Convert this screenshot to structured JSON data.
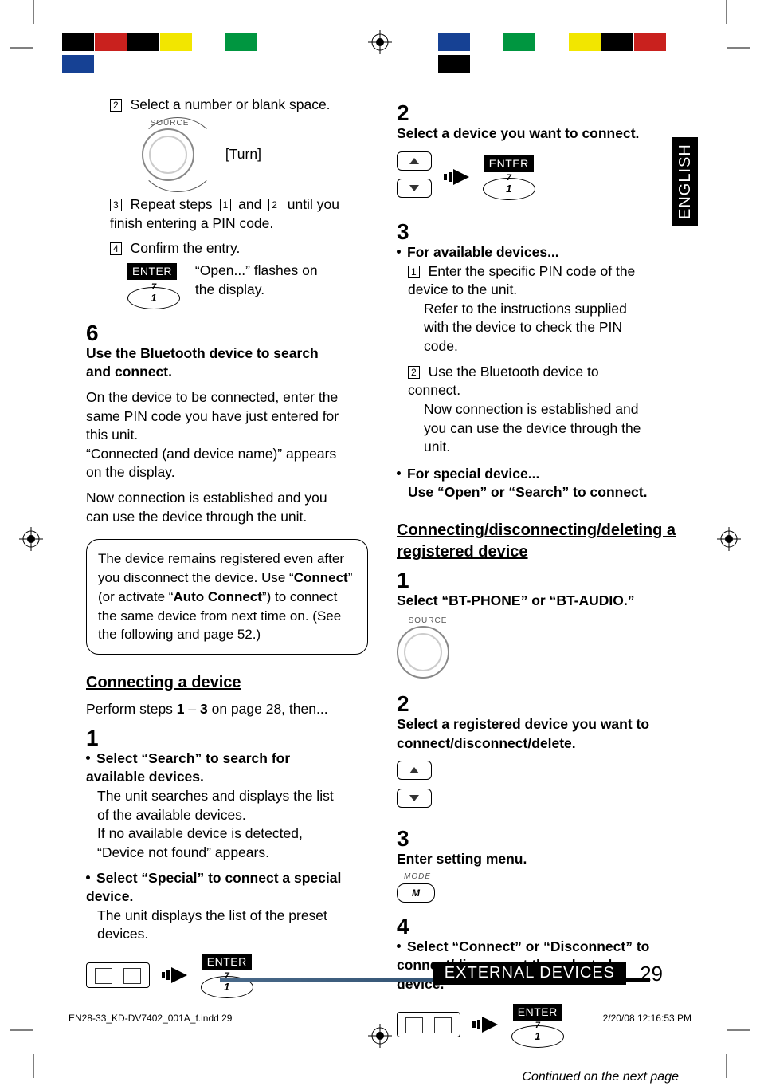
{
  "colors": {
    "topbar_left": [
      "#000000",
      "#c9211e",
      "#000000",
      "#f2e600",
      "#ffffff",
      "#009640",
      "#ffffff",
      "#164194"
    ],
    "topbar_right": [
      "#164194",
      "#ffffff",
      "#009640",
      "#ffffff",
      "#f2e600",
      "#000000",
      "#c9211e",
      "#000000"
    ],
    "footer_grad_start": "#4a6a8a",
    "footer_black": "#000000"
  },
  "lang_tab": "ENGLISH",
  "left": {
    "s2": "Select a number or blank space.",
    "source_lbl": "SOURCE",
    "turn": "[Turn]",
    "s3a": "Repeat steps",
    "s3b": "and",
    "s3c": "until you finish entering a PIN code.",
    "s4": "Confirm the entry.",
    "enter": "ENTER",
    "open_flash": "“Open...” flashes on the display.",
    "oval1": "1",
    "seven": "7",
    "big6": "6",
    "s6_head": "Use the Bluetooth device to search and connect.",
    "s6_p1": "On the device to be connected, enter the same PIN code you have just entered for this unit.",
    "s6_p2": "“Connected (and device name)” appears on the display.",
    "s6_p3": "Now connection is established and you can use the device through the unit.",
    "note_a": "The device remains registered even after you disconnect the device. Use “",
    "note_b": "Connect",
    "note_c": "” (or activate “",
    "note_d": "Auto Connect",
    "note_e": "”) to connect the same device from next time on. (See the following and page 52.)",
    "h_conn": "Connecting a device",
    "perform_a": "Perform steps ",
    "perform_b": "1",
    "perform_c": " – ",
    "perform_d": "3",
    "perform_e": " on page 28, then...",
    "big1": "1",
    "c1a": "Select “Search” to search for available devices.",
    "c1b": "The unit searches and displays the list of the available devices.",
    "c1c": "If no available device is detected, “Device not found” appears.",
    "c1d": "Select “Special” to connect a special device.",
    "c1e": "The unit displays the list of the preset devices."
  },
  "right": {
    "big2": "2",
    "r2": "Select a device you want to connect.",
    "enter": "ENTER",
    "seven": "7",
    "oval1": "1",
    "big3": "3",
    "r3h": "For available devices...",
    "r3_1a": "Enter the specific PIN code of the device to the unit.",
    "r3_1b": "Refer to the instructions supplied with the device to check the PIN code.",
    "r3_2a": "Use the Bluetooth device to connect.",
    "r3_2b": "Now connection is established and you can use the device through the unit.",
    "r3_sp1": "For special device...",
    "r3_sp2": "Use “Open” or “Search” to connect.",
    "h_cdr": "Connecting/disconnecting/deleting a registered device",
    "big1b": "1",
    "d1": "Select “BT-PHONE” or “BT-AUDIO.”",
    "src": "SOURCE",
    "big2b": "2",
    "d2": "Select a registered device you want to connect/disconnect/delete.",
    "big3b": "3",
    "d3": "Enter setting menu.",
    "mode": "MODE",
    "m": "M",
    "big4": "4",
    "d4": "Select “Connect” or “Disconnect” to connect/disconnect the selected device."
  },
  "cont": "Continued on the next page",
  "footer_label": "EXTERNAL DEVICES",
  "page_num": "29",
  "slug_file": "EN28-33_KD-DV7402_001A_f.indd   29",
  "slug_date": "2/20/08   12:16:53 PM"
}
